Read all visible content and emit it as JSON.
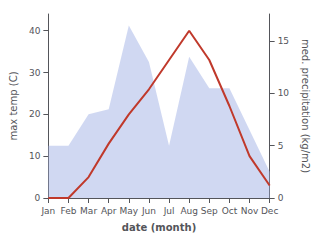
{
  "chart_data": {
    "type": "line",
    "categories": [
      "Jan",
      "Feb",
      "Mar",
      "Apr",
      "May",
      "Jun",
      "Jul",
      "Aug",
      "Sep",
      "Oct",
      "Nov",
      "Dec"
    ],
    "xlabel": "date (month)",
    "ylabel": "max temp (C)",
    "y2label": "med. precipitation (kg/m2)",
    "series": [
      {
        "type": "area",
        "color": "#aab8e8",
        "axis": "y2",
        "values": [
          5,
          5,
          8,
          8.5,
          16.5,
          13,
          5,
          13.5,
          10.5,
          10.5,
          6.5,
          2.5
        ]
      },
      {
        "type": "line",
        "color": "#c0392b",
        "values": [
          0,
          0,
          5,
          13,
          20,
          26,
          33,
          40,
          33,
          22,
          10,
          3
        ]
      }
    ],
    "ylim": [
      0,
      44
    ],
    "yticks": [
      0,
      10,
      20,
      30,
      40
    ],
    "y2lim": [
      0,
      17.6
    ],
    "y2ticks": [
      0,
      5,
      10,
      15
    ],
    "grid": false
  }
}
